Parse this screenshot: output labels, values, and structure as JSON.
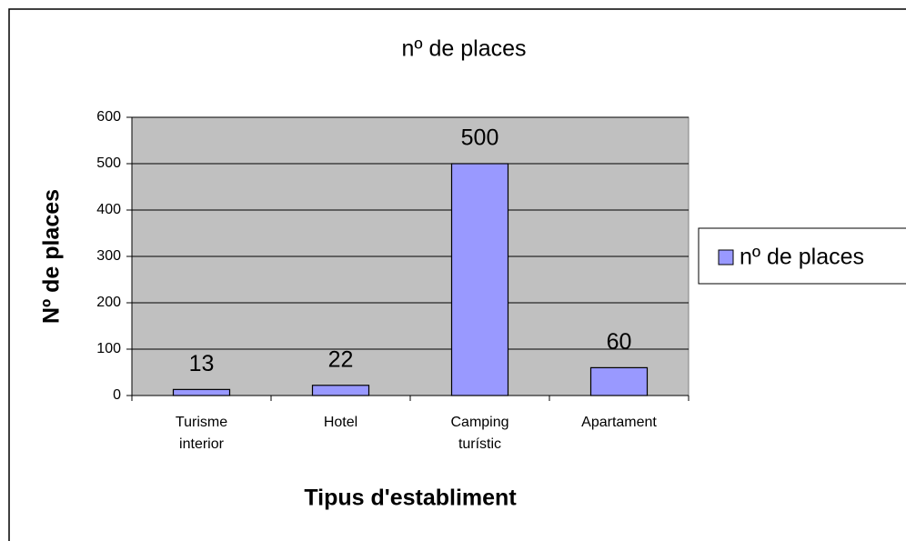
{
  "chart_data": {
    "type": "bar",
    "title": "nº de places",
    "categories": [
      "Turisme interior",
      "Hotel",
      "Camping turístic",
      "Apartament"
    ],
    "series": [
      {
        "name": "nº de places",
        "color": "#9999ff",
        "values": [
          13,
          22,
          500,
          60
        ]
      }
    ],
    "ylim": [
      0,
      600
    ],
    "yticks": [
      0,
      100,
      200,
      300,
      400,
      500,
      600
    ],
    "grid": true,
    "x_label": "Tipus d'establiment",
    "y_label": "Nº de places",
    "legend": "right"
  }
}
